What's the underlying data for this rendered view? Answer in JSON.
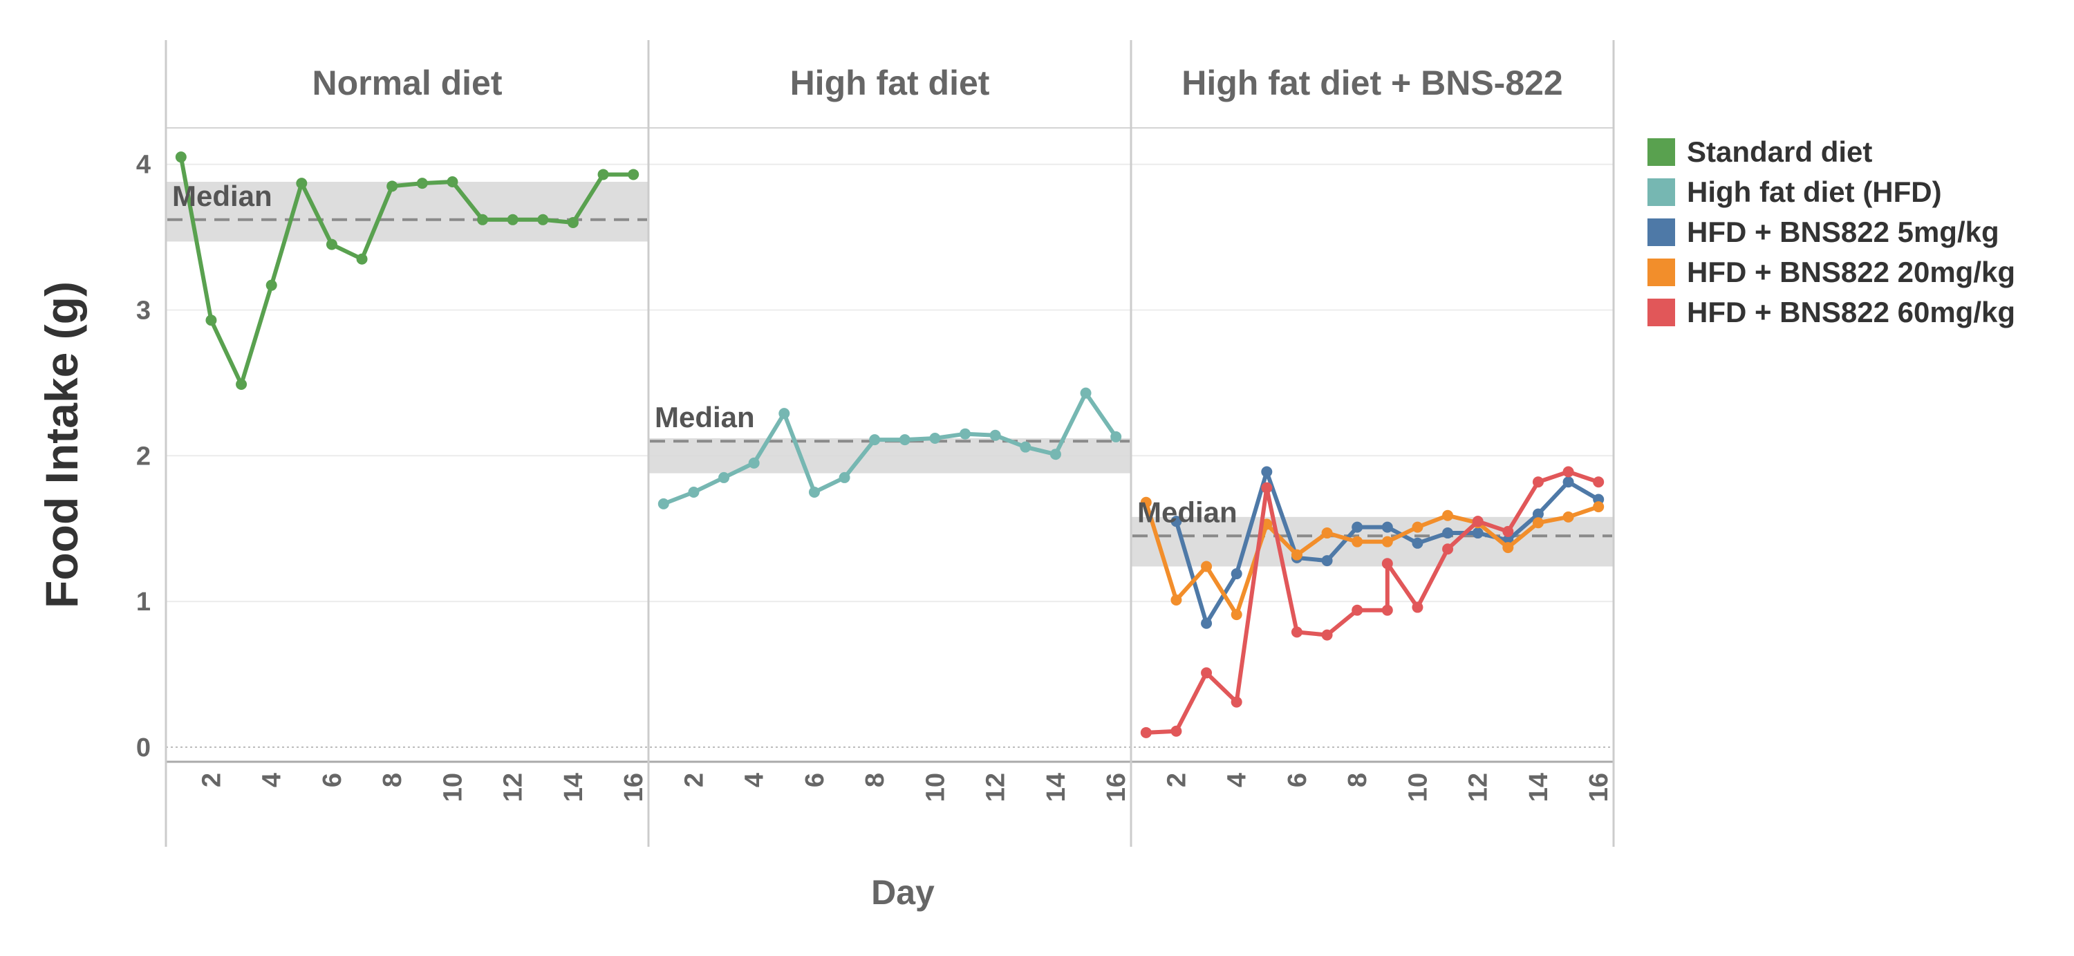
{
  "chart_data": {
    "type": "line",
    "xlabel": "Day",
    "ylabel": "Food Intake (g)",
    "ylim": [
      -0.1,
      4.25
    ],
    "yticks": [
      0,
      1,
      2,
      3,
      4
    ],
    "xlim": [
      0.5,
      16.5
    ],
    "xticks": [
      2,
      4,
      6,
      8,
      10,
      12,
      14,
      16
    ],
    "grid": true,
    "legend_position": "right",
    "median_label": "Median",
    "legend": [
      {
        "name": "Standard diet",
        "color": "#59a14f"
      },
      {
        "name": "High fat diet (HFD)",
        "color": "#76b7b2"
      },
      {
        "name": "HFD + BNS822 5mg/kg",
        "color": "#4e79a7"
      },
      {
        "name": "HFD + BNS822 20mg/kg",
        "color": "#f28e2b"
      },
      {
        "name": "HFD + BNS822 60mg/kg",
        "color": "#e15759"
      }
    ],
    "panels": [
      {
        "title": "Normal diet",
        "median": 3.62,
        "band": [
          3.47,
          3.88
        ],
        "series": [
          {
            "legend_index": 0,
            "x": [
              1,
              2,
              3,
              4,
              5,
              6,
              7,
              8,
              9,
              10,
              11,
              12,
              13,
              14,
              15,
              16
            ],
            "values": [
              4.05,
              2.93,
              2.49,
              3.17,
              3.87,
              3.45,
              3.35,
              3.85,
              3.87,
              3.88,
              3.62,
              3.62,
              3.62,
              3.6,
              3.93,
              3.93
            ]
          }
        ]
      },
      {
        "title": "High fat diet",
        "median": 2.1,
        "band": [
          1.88,
          2.12
        ],
        "series": [
          {
            "legend_index": 1,
            "x": [
              1,
              2,
              3,
              4,
              5,
              6,
              7,
              8,
              9,
              10,
              11,
              12,
              13,
              14,
              15,
              16
            ],
            "values": [
              1.67,
              1.75,
              1.85,
              1.95,
              2.29,
              1.75,
              1.85,
              2.11,
              2.11,
              2.12,
              2.15,
              2.14,
              2.06,
              2.01,
              2.43,
              2.13
            ]
          }
        ]
      },
      {
        "title": "High fat diet + BNS-822",
        "median": 1.45,
        "band": [
          1.24,
          1.58
        ],
        "series": [
          {
            "legend_index": 2,
            "x": [
              2,
              3,
              4,
              5,
              6,
              7,
              8,
              9,
              10,
              11,
              12,
              13,
              14,
              15,
              16
            ],
            "values": [
              1.55,
              0.85,
              1.19,
              1.89,
              1.3,
              1.28,
              1.51,
              1.51,
              1.4,
              1.47,
              1.47,
              1.42,
              1.6,
              1.82,
              1.7
            ]
          },
          {
            "legend_index": 3,
            "x": [
              1,
              2,
              3,
              4,
              5,
              6,
              7,
              8,
              9,
              10,
              11,
              12,
              13,
              14,
              15,
              16
            ],
            "values": [
              1.68,
              1.01,
              1.24,
              0.91,
              1.53,
              1.32,
              1.47,
              1.41,
              1.41,
              1.51,
              1.59,
              1.54,
              1.37,
              1.54,
              1.58,
              1.65
            ]
          },
          {
            "legend_index": 4,
            "x": [
              1,
              2,
              3,
              4,
              5,
              6,
              7,
              8,
              9,
              9,
              10,
              11,
              12,
              13,
              14,
              15,
              16
            ],
            "values": [
              0.1,
              0.11,
              0.51,
              0.31,
              1.78,
              0.79,
              0.77,
              0.94,
              0.94,
              1.26,
              0.96,
              1.36,
              1.55,
              1.48,
              1.82,
              1.89,
              1.82
            ]
          }
        ]
      }
    ]
  }
}
